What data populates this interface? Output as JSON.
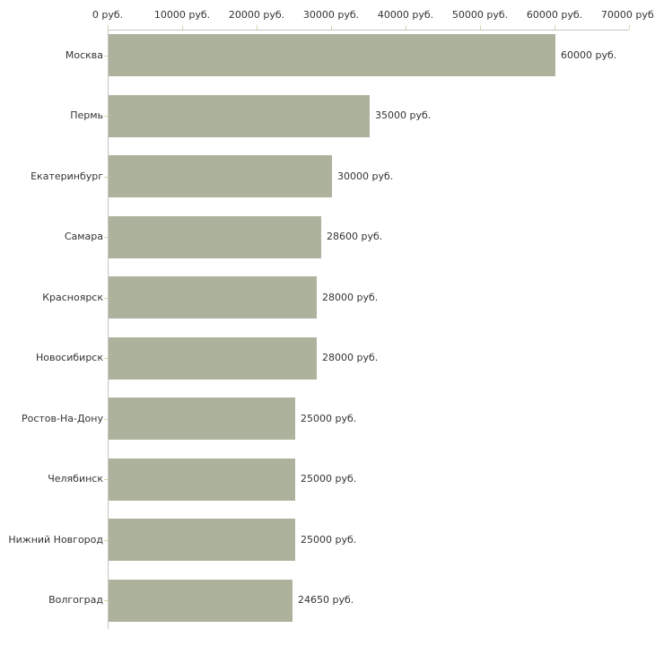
{
  "chart_data": {
    "type": "bar",
    "orientation": "horizontal",
    "title": "",
    "xlabel": "",
    "ylabel": "",
    "categories": [
      "Москва",
      "Пермь",
      "Екатеринбург",
      "Самара",
      "Красноярск",
      "Новосибирск",
      "Ростов-На-Дону",
      "Челябинск",
      "Нижний Новгород",
      "Волгоград"
    ],
    "values": [
      60000,
      35000,
      30000,
      28600,
      28000,
      28000,
      25000,
      25000,
      25000,
      24650
    ],
    "value_labels": [
      "60000 руб.",
      "35000 руб.",
      "30000 руб.",
      "28600 руб.",
      "28000 руб.",
      "28000 руб.",
      "25000 руб.",
      "25000 руб.",
      "25000 руб.",
      "24650 руб."
    ],
    "xlim": [
      0,
      70000
    ],
    "x_ticks": [
      0,
      10000,
      20000,
      30000,
      40000,
      50000,
      60000,
      70000
    ],
    "x_tick_labels": [
      "0 руб.",
      "10000 руб.",
      "20000 руб.",
      "30000 руб.",
      "40000 руб.",
      "50000 руб.",
      "60000 руб.",
      "70000 руб."
    ],
    "grid": false,
    "legend": false,
    "unit_suffix": " руб.",
    "colors": {
      "bar": "#adb29c",
      "axis_line": "#c5c5c5",
      "tick_mark": "#d8d3ac",
      "text": "#333333",
      "background": "#ffffff"
    }
  }
}
